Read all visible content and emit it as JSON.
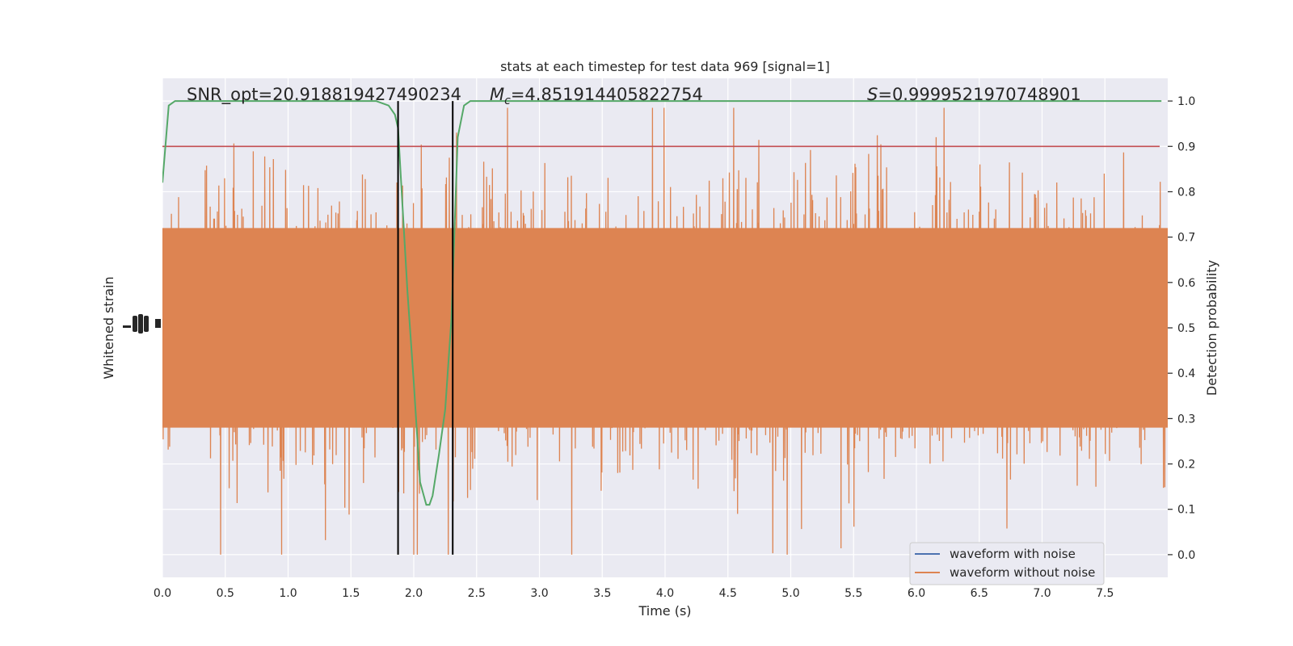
{
  "chart_data": {
    "type": "line",
    "title": "stats at each timestep for test data 969 [signal=1]",
    "xlabel": "Time (s)",
    "ylabel_left": "Whitened strain",
    "ylabel_right": "Detection probability",
    "xlim": [
      0.0,
      8.0
    ],
    "ylim_right": [
      -0.05,
      1.05
    ],
    "x_ticks": [
      "0.0",
      "0.5",
      "1.0",
      "1.5",
      "2.0",
      "2.5",
      "3.0",
      "3.5",
      "4.0",
      "4.5",
      "5.0",
      "5.5",
      "6.0",
      "6.5",
      "7.0",
      "7.5"
    ],
    "x_tick_values": [
      0.0,
      0.5,
      1.0,
      1.5,
      2.0,
      2.5,
      3.0,
      3.5,
      4.0,
      4.5,
      5.0,
      5.5,
      6.0,
      6.5,
      7.0,
      7.5
    ],
    "y_right_ticks": [
      "0.0",
      "0.1",
      "0.2",
      "0.3",
      "0.4",
      "0.5",
      "0.6",
      "0.7",
      "0.8",
      "0.9",
      "1.0"
    ],
    "y_right_tick_values": [
      0.0,
      0.1,
      0.2,
      0.3,
      0.4,
      0.5,
      0.6,
      0.7,
      0.8,
      0.9,
      1.0
    ],
    "annotations": {
      "snr": "SNR_opt=20.918819427490234",
      "mc_symbol": "M",
      "mc_sub": "c",
      "mc_value": "=4.851914405822754",
      "s_symbol": "S",
      "s_value": "=0.9999521970748901"
    },
    "threshold": 0.9,
    "vertical_lines": [
      1.875,
      2.31
    ],
    "detection_probability": {
      "x": [
        0.0,
        0.05,
        0.1,
        0.2,
        0.5,
        1.0,
        1.5,
        1.7,
        1.8,
        1.85,
        1.875,
        1.9,
        1.95,
        2.0,
        2.05,
        2.1,
        2.125,
        2.15,
        2.2,
        2.25,
        2.3,
        2.35,
        2.4,
        2.45,
        2.5,
        3.0,
        4.0,
        5.0,
        6.0,
        7.0,
        7.95
      ],
      "y": [
        0.82,
        0.99,
        1.0,
        1.0,
        1.0,
        1.0,
        1.0,
        1.0,
        0.99,
        0.97,
        0.94,
        0.82,
        0.58,
        0.38,
        0.16,
        0.11,
        0.11,
        0.13,
        0.22,
        0.32,
        0.52,
        0.92,
        0.99,
        1.0,
        1.0,
        1.0,
        1.0,
        1.0,
        1.0,
        1.0,
        1.0
      ]
    },
    "series": [
      {
        "name": "waveform with noise",
        "color": "#4c72b0"
      },
      {
        "name": "waveform without noise",
        "color": "#dd8452"
      }
    ],
    "colors": {
      "probability_line": "#55a868",
      "threshold_line": "#c44e52",
      "vertical_line": "#000000",
      "plot_background": "#eaeaf2",
      "grid": "#ffffff"
    },
    "grid": true,
    "legend_position": "lower-right"
  }
}
